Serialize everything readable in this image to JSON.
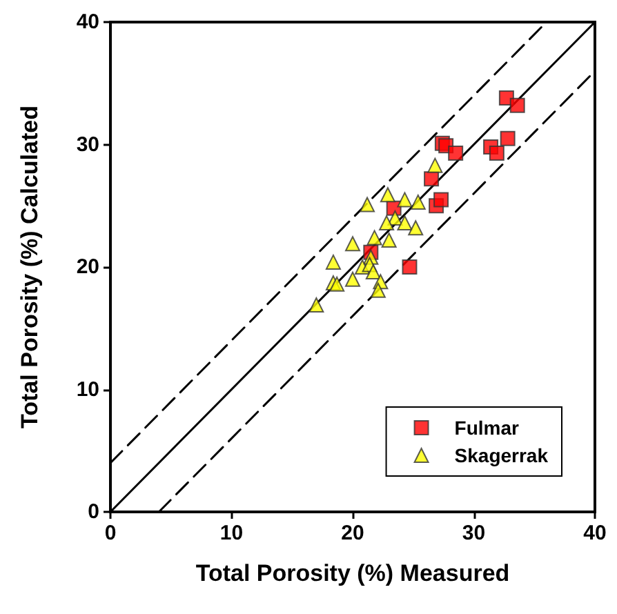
{
  "chart_data": {
    "type": "scatter",
    "xlabel": "Total Porosity (%) Measured",
    "ylabel": "Total Porosity (%) Calculated",
    "xlim": [
      0,
      40
    ],
    "ylim": [
      0,
      40
    ],
    "xticks": [
      0,
      10,
      20,
      30,
      40
    ],
    "yticks": [
      0,
      10,
      20,
      30,
      40
    ],
    "grid": false,
    "legend": "bottom right",
    "series": [
      {
        "type": "line",
        "color": "#000000",
        "line_style": "dashed",
        "marker": "none",
        "x": [
          0,
          36
        ],
        "values": [
          4,
          40
        ]
      },
      {
        "type": "line",
        "color": "#000000",
        "line_style": "solid",
        "marker": "none",
        "x": [
          0,
          40
        ],
        "values": [
          0,
          40
        ]
      },
      {
        "type": "line",
        "color": "#000000",
        "line_style": "dashed",
        "marker": "none",
        "x": [
          4,
          40
        ],
        "values": [
          0,
          36
        ]
      },
      {
        "name": "Fulmar",
        "color": "#ff0000",
        "marker": "square",
        "x": [
          32.7,
          33.6,
          27.4,
          27.7,
          28.5,
          31.4,
          31.9,
          32.8,
          26.5,
          26.9,
          27.3,
          23.4,
          21.5,
          24.7
        ],
        "values": [
          33.8,
          33.2,
          30.1,
          29.9,
          29.3,
          29.8,
          29.3,
          30.5,
          27.2,
          25.0,
          25.5,
          24.8,
          21.2,
          20.0
        ]
      },
      {
        "name": "Skagerrak",
        "color": "#ffff00",
        "marker": "triangle",
        "x": [
          26.8,
          22.9,
          21.2,
          24.3,
          25.4,
          23.5,
          22.8,
          24.3,
          25.2,
          21.8,
          23.0,
          20.0,
          21.5,
          18.4,
          20.8,
          21.4,
          21.7,
          20.0,
          18.4,
          18.7,
          22.3,
          22.1,
          17.0
        ],
        "values": [
          28.3,
          25.9,
          25.1,
          25.5,
          25.3,
          24.0,
          23.6,
          23.6,
          23.2,
          22.4,
          22.2,
          21.9,
          20.8,
          20.4,
          20.0,
          20.2,
          19.6,
          19.0,
          18.7,
          18.6,
          18.8,
          18.1,
          16.9
        ]
      }
    ]
  }
}
